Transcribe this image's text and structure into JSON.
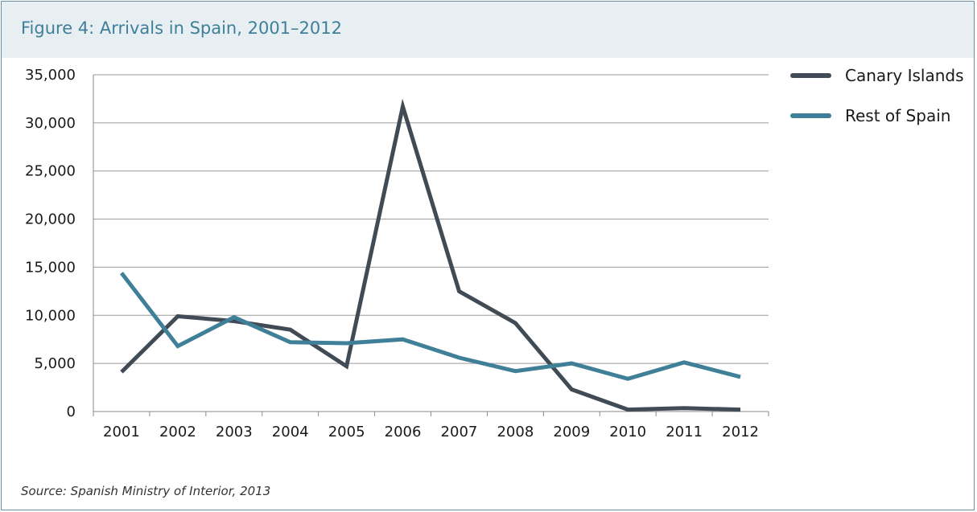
{
  "figure": {
    "title": "Figure 4:  Arrivals in Spain, 2001–2012",
    "source": "Source:  Spanish Ministry of Interior, 2013"
  },
  "chart_data": {
    "type": "line",
    "title": "Figure 4:  Arrivals in Spain, 2001–2012",
    "xlabel": "",
    "ylabel": "",
    "categories": [
      "2001",
      "2002",
      "2003",
      "2004",
      "2005",
      "2006",
      "2007",
      "2008",
      "2009",
      "2010",
      "2011",
      "2012"
    ],
    "ylim": [
      0,
      35000
    ],
    "yticks": [
      0,
      5000,
      10000,
      15000,
      20000,
      25000,
      30000,
      35000
    ],
    "ytick_labels": [
      "0",
      "5,000",
      "10,000",
      "15,000",
      "20,000",
      "25,000",
      "30,000",
      "35,000"
    ],
    "grid": true,
    "legend_position": "right",
    "series": [
      {
        "name": "Canary Islands",
        "color": "#414b56",
        "values": [
          4100,
          9900,
          9400,
          8500,
          4700,
          31700,
          12500,
          9200,
          2300,
          200,
          350,
          200
        ]
      },
      {
        "name": "Rest of Spain",
        "color": "#3f7f98",
        "values": [
          14400,
          6800,
          9800,
          7200,
          7100,
          7500,
          5600,
          4200,
          5000,
          3400,
          5100,
          3600
        ]
      }
    ]
  }
}
